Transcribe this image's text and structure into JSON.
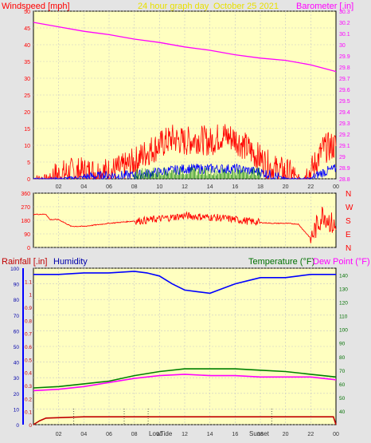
{
  "colors": {
    "background": "#e4e4e4",
    "plot_bg": "#ffffc0",
    "grid": "#c8c8c8",
    "red": "#ff0000",
    "blue": "#0000ff",
    "green": "#008000",
    "magenta": "#ff00ff",
    "dark_red": "#c00000",
    "yellow_title": "#e8e000",
    "navy": "#0000aa",
    "dark_green": "#007000"
  },
  "header": {
    "windspeed_label": "Windspeed [mph]",
    "title": "24 hour graph day",
    "date": "October 25 2021",
    "barometer_label": "Barometer [.in]"
  },
  "bottom_header": {
    "rainfall_label": "Rainfall [.in]",
    "humidity_label": "Humidity",
    "temperature_label": "Temperature (°F)",
    "dewpoint_label": "Dew Point (°F)"
  },
  "x_ticks": [
    "02",
    "04",
    "06",
    "08",
    "10",
    "12",
    "14",
    "16",
    "18",
    "20",
    "22",
    "00"
  ],
  "sun_labels": {
    "low_tide": "Low",
    "sunrise": "Tide",
    "sunset": "Sunset",
    "sunset_alt": "Set"
  },
  "chart_data": [
    {
      "type": "line",
      "name": "wind-barometer",
      "x_hours": [
        0,
        24
      ],
      "y_left": {
        "label": "Windspeed [mph]",
        "range": [
          0,
          50
        ],
        "ticks": [
          "0",
          "5",
          "10",
          "15",
          "20",
          "25",
          "30",
          "35",
          "40",
          "45",
          "50"
        ]
      },
      "y_right": {
        "label": "Barometer [.in]",
        "range": [
          28.8,
          30.3
        ],
        "ticks": [
          "28.8",
          "28.9",
          "29",
          "29.1",
          "29.2",
          "29.3",
          "29.4",
          "29.5",
          "29.6",
          "29.7",
          "29.8",
          "29.9",
          "30",
          "30.1",
          "30.2",
          "30.3"
        ]
      },
      "series": [
        {
          "name": "Barometer",
          "color": "magenta",
          "x": [
            0,
            2,
            4,
            6,
            8,
            10,
            12,
            14,
            16,
            18,
            20,
            22,
            24
          ],
          "values": [
            30.2,
            30.16,
            30.12,
            30.09,
            30.05,
            30.02,
            29.98,
            29.95,
            29.91,
            29.88,
            29.86,
            29.82,
            29.76
          ]
        },
        {
          "name": "Gust",
          "color": "red",
          "x": [
            0,
            1,
            2,
            3,
            4,
            5,
            6,
            7,
            8,
            9,
            10,
            11,
            12,
            13,
            14,
            15,
            16,
            17,
            18,
            19,
            20,
            21,
            22,
            23,
            24
          ],
          "values": [
            0,
            0,
            1,
            2,
            2,
            2,
            2,
            3,
            5,
            8,
            10,
            12,
            11,
            12,
            11,
            13,
            12,
            9,
            6,
            3,
            2,
            0,
            2,
            9,
            10
          ]
        },
        {
          "name": "Wind",
          "color": "blue",
          "x": [
            0,
            2,
            4,
            6,
            8,
            10,
            12,
            14,
            16,
            18,
            20,
            22,
            23,
            24
          ],
          "values": [
            0,
            0,
            0.5,
            1,
            1,
            2,
            3,
            3,
            3,
            2,
            0,
            0,
            2,
            3
          ]
        }
      ]
    },
    {
      "type": "line",
      "name": "wind-direction",
      "y_left": {
        "range": [
          0,
          360
        ],
        "ticks": [
          "0",
          "90",
          "180",
          "270",
          "360"
        ]
      },
      "y_right_labels": [
        "N",
        "W",
        "S",
        "E",
        "N"
      ],
      "series": [
        {
          "name": "Direction",
          "color": "red",
          "x": [
            0,
            1,
            1.3,
            2,
            3,
            4,
            6,
            8,
            9,
            10,
            11,
            12,
            13,
            14,
            15,
            16,
            17,
            18,
            19,
            20,
            21,
            22,
            23,
            24
          ],
          "values": [
            220,
            220,
            185,
            185,
            140,
            140,
            160,
            175,
            180,
            190,
            200,
            210,
            205,
            200,
            195,
            185,
            175,
            165,
            160,
            160,
            155,
            60,
            230,
            120
          ]
        }
      ]
    },
    {
      "type": "line",
      "name": "temperature-humidity",
      "y_left_humidity": {
        "range": [
          0,
          100
        ],
        "ticks": [
          "0",
          "10",
          "20",
          "30",
          "40",
          "50",
          "60",
          "70",
          "80",
          "90",
          "100"
        ]
      },
      "y_left_rain": {
        "range": [
          0,
          1.2
        ],
        "ticks": [
          "0",
          "0.1",
          "0.2",
          "0.3",
          "0.4",
          "0.5",
          "0.6",
          "0.7",
          "0.8",
          "0.9",
          "1",
          "1.1"
        ]
      },
      "y_right": {
        "range": [
          30,
          145
        ],
        "ticks": [
          "40",
          "50",
          "60",
          "70",
          "80",
          "90",
          "100",
          "110",
          "120",
          "130",
          "140"
        ]
      },
      "series": [
        {
          "name": "Humidity",
          "color": "blue",
          "x": [
            0,
            2,
            4,
            6,
            8,
            9,
            10,
            11,
            12,
            13,
            14,
            15,
            16,
            17,
            18,
            19,
            20,
            21,
            22,
            23,
            24
          ],
          "values": [
            96,
            96,
            97,
            97,
            98,
            97,
            95,
            90,
            86,
            85,
            84,
            87,
            90,
            92,
            94,
            94,
            94,
            95,
            96,
            96,
            96
          ]
        },
        {
          "name": "Temperature",
          "color": "green",
          "x": [
            0,
            2,
            4,
            6,
            8,
            10,
            12,
            14,
            16,
            18,
            20,
            22,
            24
          ],
          "values": [
            57,
            58,
            60,
            62,
            66,
            69,
            71,
            71,
            71,
            70,
            69,
            67,
            65
          ]
        },
        {
          "name": "Dew Point",
          "color": "magenta",
          "x": [
            0,
            2,
            4,
            6,
            8,
            10,
            12,
            14,
            16,
            18,
            20,
            22,
            24
          ],
          "values": [
            55,
            56,
            58,
            61,
            64,
            66,
            67,
            66,
            66,
            65,
            65,
            65,
            63
          ]
        },
        {
          "name": "Rainfall",
          "color": "dark_red",
          "x": [
            0,
            0.5,
            1,
            4,
            6,
            8,
            10,
            12,
            14,
            16,
            18,
            20,
            22,
            23.8,
            24
          ],
          "values": [
            0,
            0.03,
            0.05,
            0.06,
            0.06,
            0.06,
            0.06,
            0.06,
            0.06,
            0.06,
            0.06,
            0.06,
            0.06,
            0.06,
            0
          ]
        }
      ]
    }
  ]
}
